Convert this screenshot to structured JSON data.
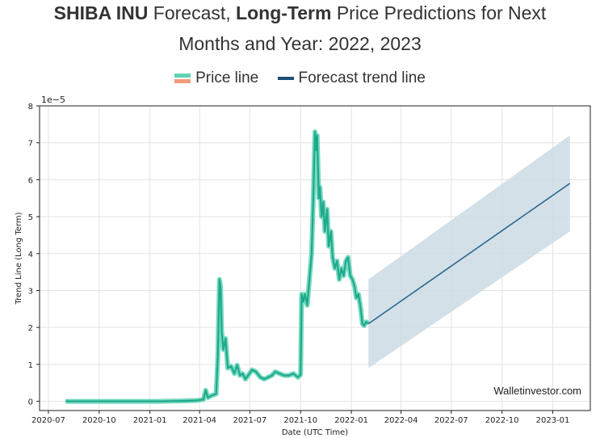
{
  "title": {
    "bold1": "SHIBA INU",
    "text1": " Forecast, ",
    "bold2": "Long-Term",
    "text2": " Price Predictions for Next",
    "line2": "Months and Year: 2022, 2023"
  },
  "legend": {
    "price": "Price line",
    "forecast": "Forecast trend line"
  },
  "watermark": "Walletinvestor.com",
  "colors": {
    "price_line": "#1fa98c",
    "price_glow": "#5fd3b5",
    "legend_orange": "#f39a7c",
    "forecast_line": "#2b6a8f",
    "forecast_band": "#cddbe4",
    "grid": "#e3e3e3"
  },
  "chart_data": {
    "type": "line",
    "xlabel": "Date (UTC Time)",
    "ylabel": "Trend Line (Long Term)",
    "y_scale_label": "1e−5",
    "ylim": [
      -0.25,
      8
    ],
    "xlim": [
      "2020-06-15",
      "2023-03-10"
    ],
    "grid": true,
    "x_ticks": [
      "2020-07",
      "2020-10",
      "2021-01",
      "2021-04",
      "2021-07",
      "2021-10",
      "2022-01",
      "2022-04",
      "2022-07",
      "2022-10",
      "2023-01"
    ],
    "y_ticks": [
      0,
      1,
      2,
      3,
      4,
      5,
      6,
      7,
      8
    ],
    "series": [
      {
        "name": "Price line",
        "points": [
          [
            "2020-08-01",
            0.0
          ],
          [
            "2020-10-01",
            0.0
          ],
          [
            "2020-12-01",
            0.0
          ],
          [
            "2021-01-20",
            0.0
          ],
          [
            "2021-03-01",
            0.01
          ],
          [
            "2021-03-25",
            0.02
          ],
          [
            "2021-04-08",
            0.05
          ],
          [
            "2021-04-12",
            0.3
          ],
          [
            "2021-04-16",
            0.1
          ],
          [
            "2021-04-22",
            0.15
          ],
          [
            "2021-05-01",
            0.2
          ],
          [
            "2021-05-04",
            1.2
          ],
          [
            "2021-05-07",
            3.3
          ],
          [
            "2021-05-09",
            3.1
          ],
          [
            "2021-05-11",
            1.9
          ],
          [
            "2021-05-14",
            1.4
          ],
          [
            "2021-05-18",
            1.7
          ],
          [
            "2021-05-22",
            0.9
          ],
          [
            "2021-05-28",
            0.95
          ],
          [
            "2021-06-03",
            0.75
          ],
          [
            "2021-06-08",
            0.98
          ],
          [
            "2021-06-13",
            0.7
          ],
          [
            "2021-06-18",
            0.75
          ],
          [
            "2021-06-23",
            0.6
          ],
          [
            "2021-06-28",
            0.7
          ],
          [
            "2021-07-05",
            0.85
          ],
          [
            "2021-07-12",
            0.8
          ],
          [
            "2021-07-20",
            0.65
          ],
          [
            "2021-07-27",
            0.6
          ],
          [
            "2021-08-03",
            0.65
          ],
          [
            "2021-08-10",
            0.7
          ],
          [
            "2021-08-16",
            0.8
          ],
          [
            "2021-08-24",
            0.75
          ],
          [
            "2021-09-01",
            0.7
          ],
          [
            "2021-09-10",
            0.7
          ],
          [
            "2021-09-18",
            0.75
          ],
          [
            "2021-09-26",
            0.65
          ],
          [
            "2021-10-01",
            0.72
          ],
          [
            "2021-10-03",
            2.9
          ],
          [
            "2021-10-06",
            2.7
          ],
          [
            "2021-10-09",
            2.9
          ],
          [
            "2021-10-13",
            2.6
          ],
          [
            "2021-10-17",
            3.3
          ],
          [
            "2021-10-21",
            4.0
          ],
          [
            "2021-10-24",
            5.5
          ],
          [
            "2021-10-27",
            7.3
          ],
          [
            "2021-10-29",
            6.8
          ],
          [
            "2021-10-31",
            7.2
          ],
          [
            "2021-11-03",
            5.5
          ],
          [
            "2021-11-05",
            5.8
          ],
          [
            "2021-11-08",
            5.0
          ],
          [
            "2021-11-11",
            5.4
          ],
          [
            "2021-11-14",
            4.6
          ],
          [
            "2021-11-18",
            5.2
          ],
          [
            "2021-11-21",
            4.2
          ],
          [
            "2021-11-25",
            4.6
          ],
          [
            "2021-11-28",
            3.9
          ],
          [
            "2021-12-02",
            3.6
          ],
          [
            "2021-12-06",
            3.8
          ],
          [
            "2021-12-10",
            3.3
          ],
          [
            "2021-12-14",
            3.6
          ],
          [
            "2021-12-18",
            3.4
          ],
          [
            "2021-12-22",
            3.8
          ],
          [
            "2021-12-26",
            3.9
          ],
          [
            "2021-12-30",
            3.4
          ],
          [
            "2022-01-03",
            3.3
          ],
          [
            "2022-01-07",
            3.1
          ],
          [
            "2022-01-10",
            2.8
          ],
          [
            "2022-01-14",
            2.9
          ],
          [
            "2022-01-18",
            2.5
          ],
          [
            "2022-01-21",
            2.1
          ],
          [
            "2022-01-24",
            2.05
          ],
          [
            "2022-01-28",
            2.15
          ],
          [
            "2022-02-01",
            2.1
          ]
        ]
      },
      {
        "name": "Forecast trend line",
        "points": [
          [
            "2022-02-01",
            2.1
          ],
          [
            "2023-02-01",
            5.9
          ]
        ],
        "band_upper": [
          [
            "2022-02-01",
            3.3
          ],
          [
            "2023-02-01",
            7.2
          ]
        ],
        "band_lower": [
          [
            "2022-02-01",
            0.9
          ],
          [
            "2023-02-01",
            4.6
          ]
        ]
      }
    ]
  }
}
